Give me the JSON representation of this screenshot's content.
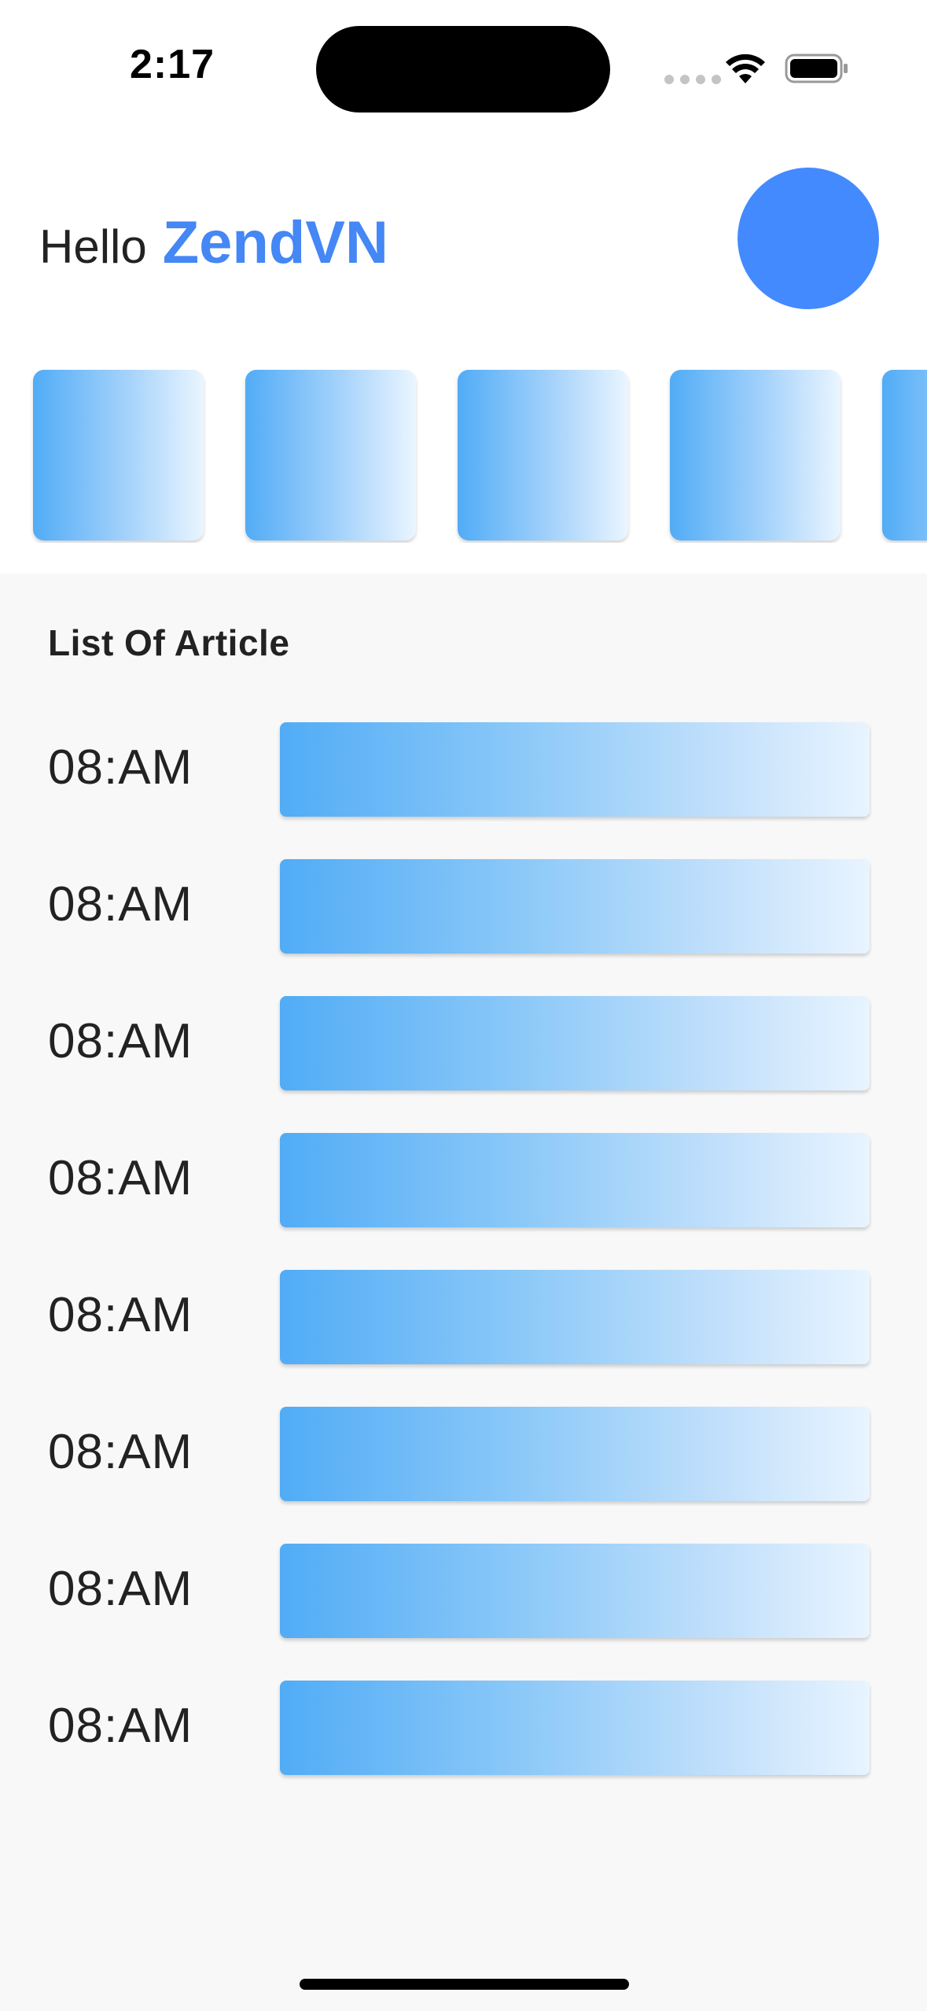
{
  "status_bar": {
    "time": "2:17",
    "icons": [
      "cellular-signal-icon",
      "wifi-icon",
      "battery-icon"
    ]
  },
  "header": {
    "greeting": "Hello",
    "name": "ZendVN",
    "avatar_color": "#448aff"
  },
  "colors": {
    "accent": "#4487f5",
    "card_gradient_start": "#51acf6",
    "card_gradient_end": "#eaf5ff",
    "background": "#f8f8f8"
  },
  "cards": [
    {},
    {},
    {},
    {},
    {}
  ],
  "articles": {
    "title": "List Of Article",
    "items": [
      {
        "time": "08:AM"
      },
      {
        "time": "08:AM"
      },
      {
        "time": "08:AM"
      },
      {
        "time": "08:AM"
      },
      {
        "time": "08:AM"
      },
      {
        "time": "08:AM"
      },
      {
        "time": "08:AM"
      },
      {
        "time": "08:AM"
      }
    ]
  }
}
